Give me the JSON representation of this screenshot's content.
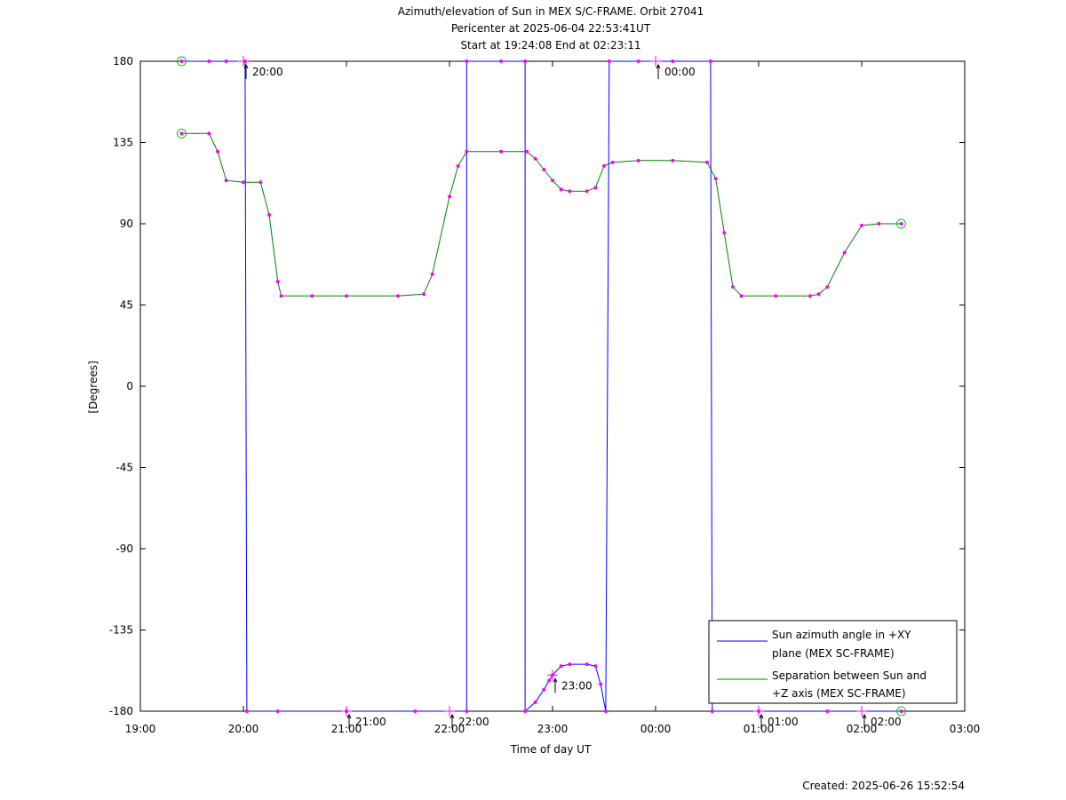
{
  "chart_data": {
    "type": "line",
    "title_lines": [
      "Azimuth/elevation of Sun in MEX S/C-FRAME.  Orbit 27041",
      "Pericenter at 2025-06-04 22:53:41UT",
      "Start at 19:24:08 End at 02:23:11"
    ],
    "xlabel": "Time of day UT",
    "ylabel": "[Degrees]",
    "xlim": [
      "19:00",
      "03:00"
    ],
    "ylim": [
      -180,
      180
    ],
    "x_ticks": [
      "19:00",
      "20:00",
      "21:00",
      "22:00",
      "23:00",
      "00:00",
      "01:00",
      "02:00",
      "03:00"
    ],
    "y_ticks": [
      180,
      135,
      90,
      45,
      0,
      -45,
      -90,
      -135,
      -180
    ],
    "hour_markers": [
      {
        "label": "20:00",
        "time": "20:00",
        "value": 180
      },
      {
        "label": "21:00",
        "time": "21:00",
        "value": -180
      },
      {
        "label": "22:00",
        "time": "22:00",
        "value": -180
      },
      {
        "label": "23:00",
        "time": "23:00",
        "value": -160
      },
      {
        "label": "00:00",
        "time": "00:00",
        "value": 180
      },
      {
        "label": "01:00",
        "time": "01:00",
        "value": -180
      },
      {
        "label": "02:00",
        "time": "02:00",
        "value": -180
      }
    ],
    "series": [
      {
        "name": "Sun azimuth angle in +XY plane (MEX SC-FRAME)",
        "color": "#0000ff",
        "points": [
          [
            "19:24",
            180
          ],
          [
            "19:40",
            180
          ],
          [
            "19:50",
            180
          ],
          [
            "20:01",
            180
          ],
          [
            "20:02",
            -180
          ],
          [
            "20:20",
            -180
          ],
          [
            "21:00",
            -180
          ],
          [
            "21:40",
            -180
          ],
          [
            "22:10",
            -180
          ],
          [
            "22:10",
            180
          ],
          [
            "22:30",
            180
          ],
          [
            "22:44",
            180
          ],
          [
            "22:44",
            -180
          ],
          [
            "22:50",
            -175
          ],
          [
            "22:55",
            -168
          ],
          [
            "22:58",
            -163
          ],
          [
            "23:00",
            -160
          ],
          [
            "23:05",
            -155
          ],
          [
            "23:10",
            -154
          ],
          [
            "23:20",
            -154
          ],
          [
            "23:25",
            -155
          ],
          [
            "23:28",
            -165
          ],
          [
            "23:31",
            -180
          ],
          [
            "23:33",
            180
          ],
          [
            "23:50",
            180
          ],
          [
            "00:10",
            180
          ],
          [
            "00:32",
            180
          ],
          [
            "00:33",
            -180
          ],
          [
            "01:00",
            -180
          ],
          [
            "01:40",
            -180
          ],
          [
            "02:23",
            -180
          ]
        ]
      },
      {
        "name": "Separation between Sun and +Z axis (MEX SC-FRAME)",
        "color": "#008000",
        "points": [
          [
            "19:24",
            140
          ],
          [
            "19:40",
            140
          ],
          [
            "19:45",
            130
          ],
          [
            "19:50",
            114
          ],
          [
            "20:00",
            113
          ],
          [
            "20:10",
            113
          ],
          [
            "20:15",
            95
          ],
          [
            "20:20",
            58
          ],
          [
            "20:22",
            50
          ],
          [
            "20:40",
            50
          ],
          [
            "21:00",
            50
          ],
          [
            "21:30",
            50
          ],
          [
            "21:45",
            51
          ],
          [
            "21:50",
            62
          ],
          [
            "22:00",
            105
          ],
          [
            "22:05",
            122
          ],
          [
            "22:10",
            130
          ],
          [
            "22:30",
            130
          ],
          [
            "22:45",
            130
          ],
          [
            "22:50",
            126
          ],
          [
            "22:55",
            120
          ],
          [
            "23:00",
            114
          ],
          [
            "23:05",
            109
          ],
          [
            "23:10",
            108
          ],
          [
            "23:20",
            108
          ],
          [
            "23:25",
            110
          ],
          [
            "23:30",
            122
          ],
          [
            "23:35",
            124
          ],
          [
            "23:50",
            125
          ],
          [
            "00:10",
            125
          ],
          [
            "00:30",
            124
          ],
          [
            "00:35",
            115
          ],
          [
            "00:40",
            85
          ],
          [
            "00:45",
            55
          ],
          [
            "00:50",
            50
          ],
          [
            "01:10",
            50
          ],
          [
            "01:30",
            50
          ],
          [
            "01:35",
            51
          ],
          [
            "01:40",
            55
          ],
          [
            "01:50",
            74
          ],
          [
            "02:00",
            89
          ],
          [
            "02:10",
            90
          ],
          [
            "02:23",
            90
          ]
        ]
      }
    ],
    "legend": {
      "position": "bottom-right",
      "entries": [
        {
          "lines": [
            "Sun azimuth angle in +XY",
            "plane (MEX SC-FRAME)"
          ],
          "color": "#0000ff"
        },
        {
          "lines": [
            "Separation between Sun and",
            "+Z axis (MEX SC-FRAME)"
          ],
          "color": "#008000"
        }
      ]
    },
    "footer": "Created: 2025-06-26 15:52:54"
  }
}
